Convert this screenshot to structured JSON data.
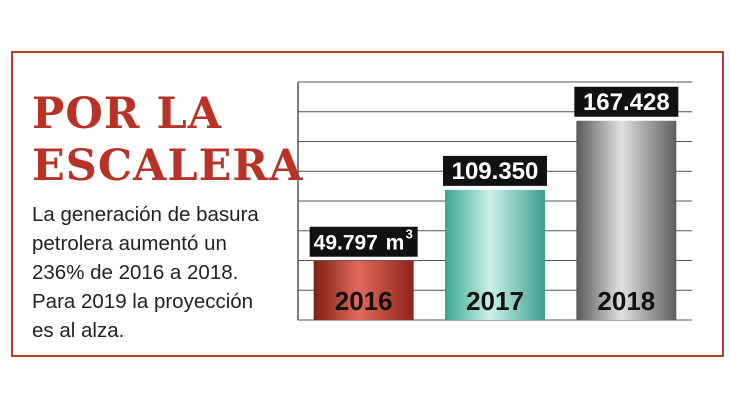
{
  "infographic": {
    "title_lines": [
      "POR LA",
      "ESCALERA"
    ],
    "description_lines": [
      "La generación de basura",
      "petrolera aumentó un",
      "236% de 2016 a 2018.",
      "Para 2019 la proyección",
      "es al alza."
    ]
  },
  "chart_data": {
    "type": "bar",
    "categories": [
      "2016",
      "2017",
      "2018"
    ],
    "values": [
      49797,
      109350,
      167428
    ],
    "value_labels": [
      "49.797",
      "109.350",
      "167.428"
    ],
    "unit": "m",
    "unit_exponent": "3",
    "title": "",
    "xlabel": "",
    "ylabel": "",
    "ylim": [
      0,
      200000
    ],
    "grid": true,
    "legend": "none",
    "colors": {
      "2016": "#c0392b",
      "2017": "#5cc6b3",
      "2018": "#8f8f8f",
      "label_bg": "#111111",
      "label_text": "#ffffff",
      "grid": "#555555",
      "accent": "#b83227"
    }
  }
}
